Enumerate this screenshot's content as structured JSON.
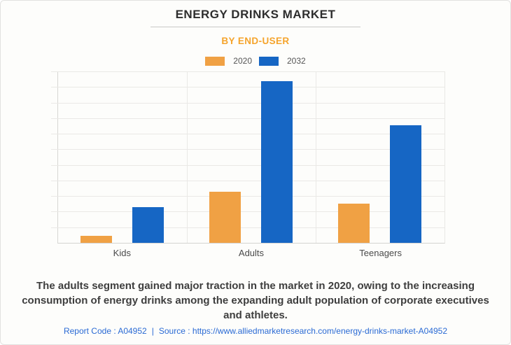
{
  "header": {
    "title": "ENERGY DRINKS MARKET",
    "subtitle": "BY END-USER"
  },
  "chart_data": {
    "type": "bar",
    "title": "ENERGY DRINKS MARKET",
    "subtitle": "BY END-USER",
    "categories": [
      "Kids",
      "Adults",
      "Teenagers"
    ],
    "series": [
      {
        "name": "2020",
        "color": "#F0A144",
        "values": [
          0.45,
          3.3,
          2.5
        ]
      },
      {
        "name": "2032",
        "color": "#1666C4",
        "values": [
          2.3,
          10.35,
          7.55
        ]
      }
    ],
    "xlabel": "",
    "ylabel": "",
    "ylim": [
      0,
      11
    ],
    "y_axis_tick_labels_visible": false,
    "grid": true,
    "legend_position": "top"
  },
  "caption": "The adults segment gained major traction in the market in 2020, owing to the increasing consumption of energy drinks among the expanding adult population of corporate executives and athletes.",
  "footer": {
    "report_code": "Report Code : A04952",
    "divider": "|",
    "source_prefix": "Source :",
    "source_url": "https://www.alliedmarketresearch.com/energy-drinks-market-A04952"
  },
  "colors": {
    "accent_orange": "#F5A42C",
    "series_2020_orange": "#F0A144",
    "series_2032_blue": "#1666C4",
    "footer_link_blue": "#2A6AD4",
    "background": "#FDFDFB"
  }
}
